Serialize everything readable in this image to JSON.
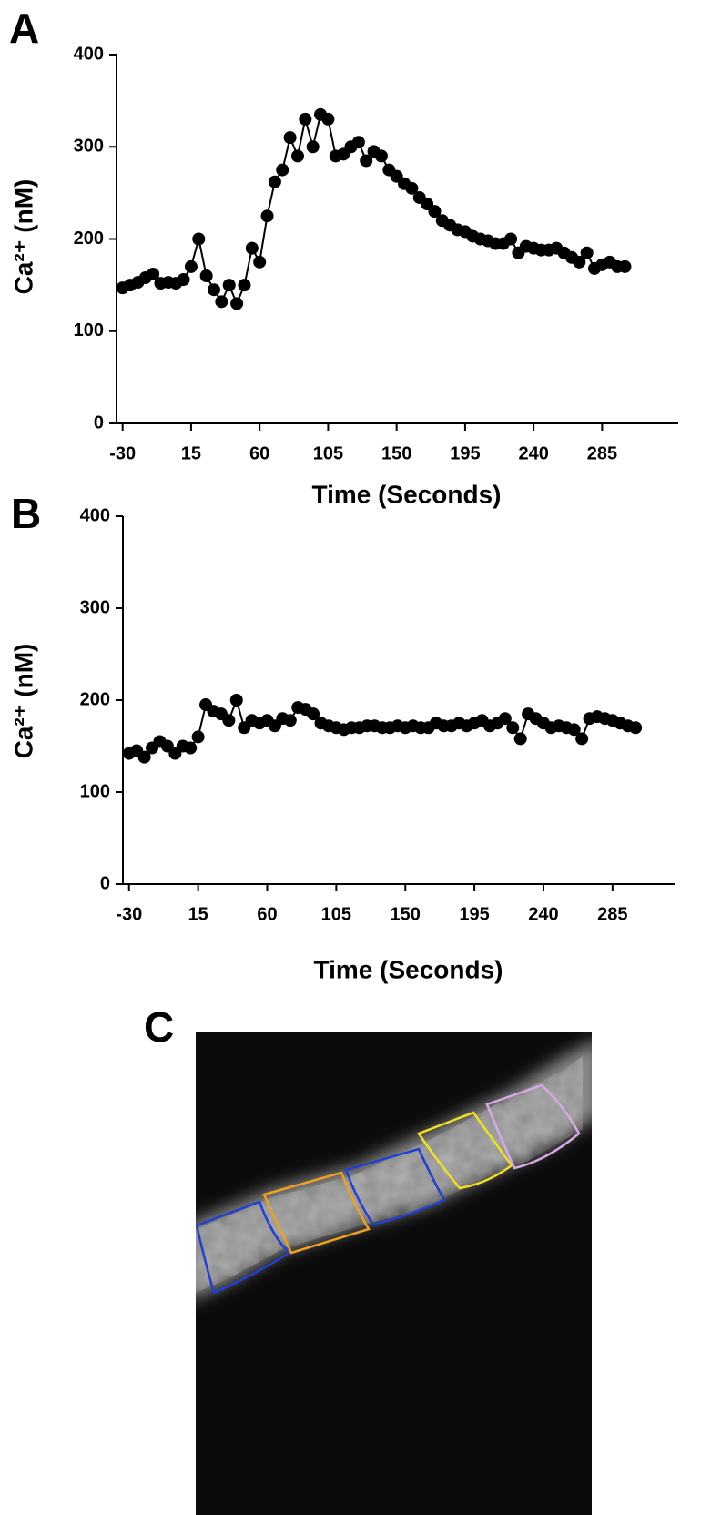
{
  "chart_data": [
    {
      "type": "line",
      "panel_label": "A",
      "x_label": "Time (Seconds)",
      "y_label": "Ca²⁺ (nM)",
      "color": "#000000",
      "x": [
        -30,
        -25,
        -20,
        -15,
        -10,
        -5,
        0,
        5,
        10,
        15,
        20,
        25,
        30,
        35,
        40,
        45,
        50,
        55,
        60,
        65,
        70,
        75,
        80,
        85,
        90,
        95,
        100,
        105,
        110,
        115,
        120,
        125,
        130,
        135,
        140,
        145,
        150,
        155,
        160,
        165,
        170,
        175,
        180,
        185,
        190,
        195,
        200,
        205,
        210,
        215,
        220,
        225,
        230,
        235,
        240,
        245,
        250,
        255,
        260,
        265,
        270,
        275,
        280,
        285,
        290,
        295,
        300
      ],
      "values": [
        147,
        150,
        153,
        158,
        162,
        152,
        153,
        152,
        156,
        170,
        200,
        160,
        145,
        132,
        150,
        130,
        150,
        190,
        175,
        225,
        262,
        275,
        310,
        290,
        330,
        300,
        335,
        330,
        290,
        292,
        300,
        305,
        285,
        295,
        290,
        275,
        268,
        260,
        255,
        245,
        238,
        230,
        220,
        215,
        210,
        208,
        203,
        200,
        198,
        195,
        195,
        200,
        185,
        192,
        190,
        188,
        188,
        190,
        185,
        180,
        175,
        185,
        168,
        172,
        175,
        170,
        170
      ],
      "xlim": [
        -34,
        335
      ],
      "ylim": [
        0,
        400
      ],
      "xticks": [
        -30,
        15,
        60,
        105,
        150,
        195,
        240,
        285
      ],
      "yticks": [
        0,
        100,
        200,
        300,
        400
      ]
    },
    {
      "type": "line",
      "panel_label": "B",
      "x_label": "Time (Seconds)",
      "y_label": "Ca²⁺ (nM)",
      "color": "#000000",
      "x": [
        -30,
        -25,
        -20,
        -15,
        -10,
        -5,
        0,
        5,
        10,
        15,
        20,
        25,
        30,
        35,
        40,
        45,
        50,
        55,
        60,
        65,
        70,
        75,
        80,
        85,
        90,
        95,
        100,
        105,
        110,
        115,
        120,
        125,
        130,
        135,
        140,
        145,
        150,
        155,
        160,
        165,
        170,
        175,
        180,
        185,
        190,
        195,
        200,
        205,
        210,
        215,
        220,
        225,
        230,
        235,
        240,
        245,
        250,
        255,
        260,
        265,
        270,
        275,
        280,
        285,
        290,
        295,
        300
      ],
      "values": [
        142,
        145,
        138,
        148,
        155,
        150,
        142,
        150,
        148,
        160,
        195,
        188,
        185,
        178,
        200,
        170,
        178,
        175,
        178,
        172,
        180,
        178,
        192,
        190,
        185,
        175,
        172,
        170,
        168,
        170,
        170,
        172,
        172,
        170,
        170,
        172,
        170,
        172,
        170,
        170,
        175,
        172,
        172,
        175,
        172,
        175,
        178,
        172,
        175,
        180,
        170,
        158,
        185,
        180,
        175,
        170,
        172,
        170,
        168,
        158,
        180,
        182,
        180,
        178,
        175,
        172,
        170
      ],
      "xlim": [
        -34,
        326
      ],
      "ylim": [
        0,
        400
      ],
      "xticks": [
        -30,
        15,
        60,
        105,
        150,
        195,
        240,
        285
      ],
      "yticks": [
        0,
        100,
        200,
        300,
        400
      ]
    }
  ],
  "image_panel": {
    "panel_label": "C"
  }
}
